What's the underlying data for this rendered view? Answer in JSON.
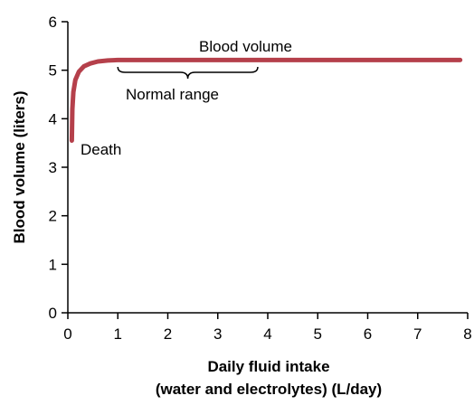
{
  "chart_data": {
    "type": "line",
    "xlabel_line1": "Daily fluid intake",
    "xlabel_line2": "(water and electrolytes) (L/day)",
    "ylabel": "Blood volume (liters)",
    "xlim": [
      0,
      8
    ],
    "ylim": [
      0,
      6
    ],
    "x_ticks": [
      "0",
      "1",
      "2",
      "3",
      "4",
      "5",
      "6",
      "7",
      "8"
    ],
    "y_ticks": [
      "0",
      "1",
      "2",
      "3",
      "4",
      "5",
      "6"
    ],
    "grid": false,
    "series_color": "#b5404b",
    "series": [
      {
        "points": [
          [
            0.08,
            3.55
          ],
          [
            0.09,
            4.2
          ],
          [
            0.11,
            4.55
          ],
          [
            0.15,
            4.8
          ],
          [
            0.22,
            4.97
          ],
          [
            0.32,
            5.08
          ],
          [
            0.45,
            5.14
          ],
          [
            0.6,
            5.18
          ],
          [
            0.8,
            5.2
          ],
          [
            1.0,
            5.21
          ],
          [
            2.0,
            5.21
          ],
          [
            4.0,
            5.21
          ],
          [
            6.0,
            5.21
          ],
          [
            7.85,
            5.21
          ]
        ]
      }
    ],
    "annotations": {
      "blood_volume": "Blood volume",
      "normal_range": "Normal range",
      "death": "Death"
    },
    "normal_range_bracket": [
      1.0,
      3.8
    ]
  }
}
